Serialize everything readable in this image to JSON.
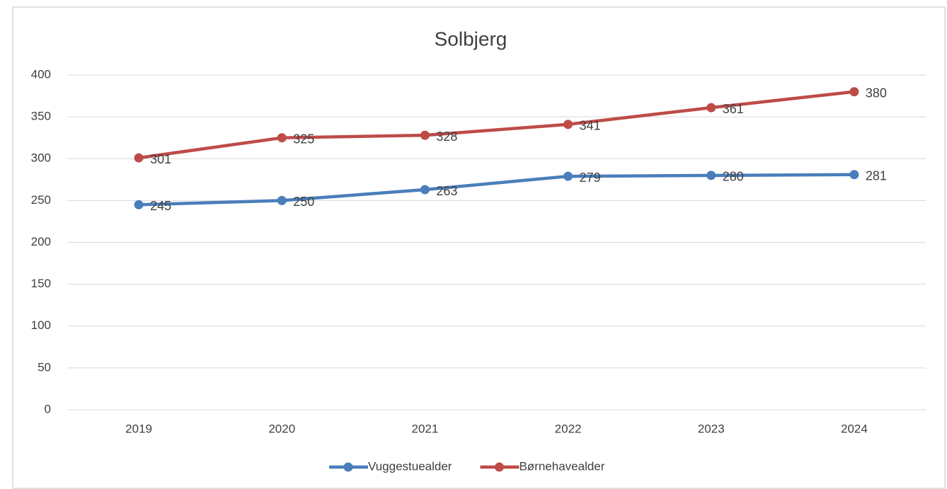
{
  "chart_data": {
    "type": "line",
    "title": "Solbjerg",
    "categories": [
      "2019",
      "2020",
      "2021",
      "2022",
      "2023",
      "2024"
    ],
    "series": [
      {
        "name": "Vuggestuealder",
        "color": "#4a7ebb",
        "values": [
          245,
          250,
          263,
          279,
          280,
          281
        ]
      },
      {
        "name": "Børnehavealder",
        "color": "#be4b48",
        "values": [
          301,
          325,
          328,
          341,
          361,
          380
        ]
      }
    ],
    "ylim": [
      0,
      400
    ],
    "yticks": [
      0,
      50,
      100,
      150,
      200,
      250,
      300,
      350,
      400
    ],
    "grid": true,
    "legend": "bottom"
  }
}
